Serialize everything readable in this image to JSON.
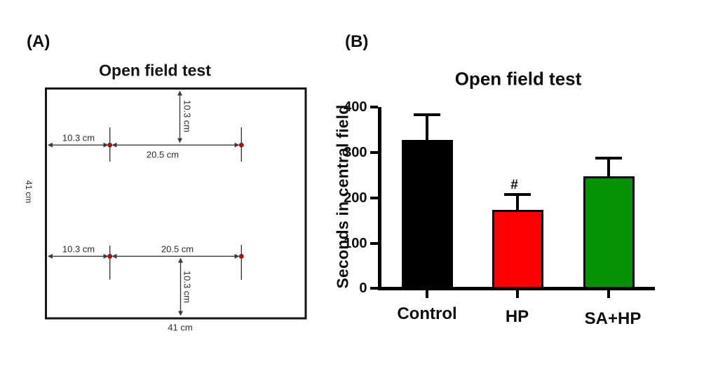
{
  "figure": {
    "panel_a": {
      "label": "(A)",
      "title": "Open field test",
      "dimensions": {
        "top_inner": "10.3 cm",
        "upper_left": "10.3 cm",
        "upper_center": "20.5 cm",
        "lower_left": "10.3 cm",
        "lower_center": "20.5 cm",
        "bottom_inner": "10.3 cm",
        "left_side": "41 cm",
        "bottom": "41 cm"
      },
      "marker_color": "#a81111",
      "line_color": "#3c3c3c",
      "box_color": "#161616"
    },
    "panel_b": {
      "label": "(B)"
    }
  },
  "chart_data": {
    "type": "bar",
    "title": "Open field test",
    "ylabel": "Seconds in central field",
    "xlabel": "",
    "categories": [
      "Control",
      "HP",
      "SA+HP"
    ],
    "values": [
      327,
      174,
      247
    ],
    "errors_plus_sem": [
      56,
      34,
      40
    ],
    "bar_colors": [
      "#000000",
      "#ff0000",
      "#069206"
    ],
    "ylim": [
      0,
      400
    ],
    "yticks": [
      0,
      100,
      200,
      300,
      400
    ],
    "grid": false,
    "legend": "none",
    "annotations": [
      {
        "text": "#",
        "category": "HP"
      }
    ]
  }
}
